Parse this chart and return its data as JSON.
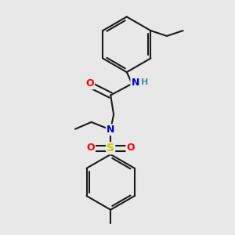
{
  "background_color": "#e8e8e8",
  "bond_color": "#1a1a1a",
  "atom_colors": {
    "O": "#ff0000",
    "N": "#0000cc",
    "S": "#cccc00",
    "H": "#4a9090",
    "C": "#1a1a1a"
  },
  "figsize": [
    3.0,
    3.0
  ],
  "dpi": 100
}
